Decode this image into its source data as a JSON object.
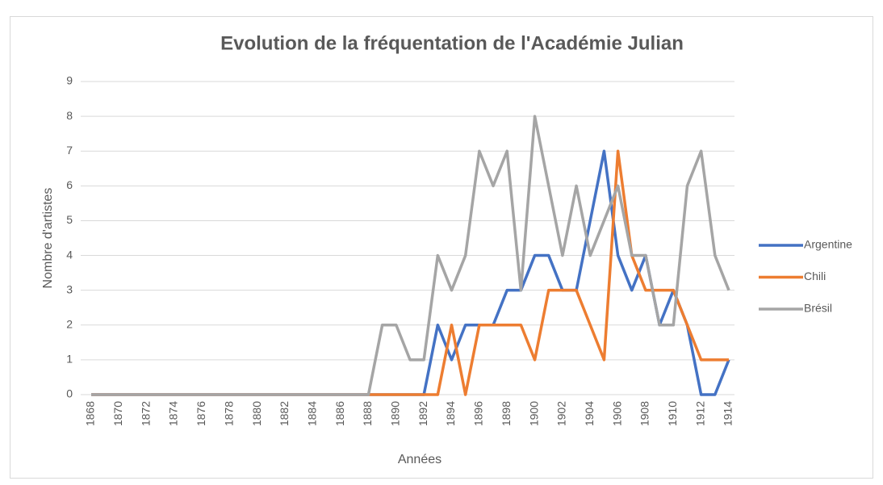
{
  "chart_data": {
    "type": "line",
    "title": "Evolution de la fréquentation de l'Académie Julian",
    "xlabel": "Années",
    "ylabel": "Nombre d'artistes",
    "categories": [
      "1868",
      null,
      "1870",
      null,
      "1872",
      null,
      "1874",
      null,
      "1876",
      null,
      "1878",
      null,
      "1880",
      null,
      "1882",
      null,
      "1884",
      null,
      "1886",
      null,
      "1888",
      null,
      "1890",
      null,
      "1892",
      null,
      "1894",
      null,
      "1896",
      null,
      "1898",
      null,
      "1900",
      null,
      "1902",
      null,
      "1904",
      null,
      "1906",
      null,
      "1908",
      null,
      "1910",
      null,
      "1912",
      null,
      "1914"
    ],
    "series": [
      {
        "name": "Argentine",
        "color": "#4472c4",
        "values": [
          0,
          0,
          0,
          0,
          0,
          0,
          0,
          0,
          0,
          0,
          0,
          0,
          0,
          0,
          0,
          0,
          0,
          0,
          0,
          0,
          0,
          0,
          0,
          0,
          0,
          2,
          1,
          2,
          2,
          2,
          3,
          3,
          4,
          4,
          3,
          3,
          5,
          7,
          4,
          3,
          4,
          2,
          3,
          2,
          0,
          0,
          1
        ]
      },
      {
        "name": "Chili",
        "color": "#ed7d31",
        "values": [
          0,
          0,
          0,
          0,
          0,
          0,
          0,
          0,
          0,
          0,
          0,
          0,
          0,
          0,
          0,
          0,
          0,
          0,
          0,
          0,
          0,
          0,
          0,
          0,
          0,
          0,
          2,
          0,
          2,
          2,
          2,
          2,
          1,
          3,
          3,
          3,
          2,
          1,
          7,
          4,
          3,
          3,
          3,
          2,
          1,
          1,
          1
        ]
      },
      {
        "name": "Brésil",
        "color": "#a5a5a5",
        "values": [
          0,
          0,
          0,
          0,
          0,
          0,
          0,
          0,
          0,
          0,
          0,
          0,
          0,
          0,
          0,
          0,
          0,
          0,
          0,
          0,
          0,
          2,
          2,
          1,
          1,
          4,
          3,
          4,
          7,
          6,
          7,
          3,
          8,
          6,
          4,
          6,
          4,
          5,
          6,
          4,
          4,
          2,
          2,
          6,
          7,
          4,
          3
        ]
      }
    ],
    "ylim": [
      0,
      9
    ],
    "yticks": [
      0,
      1,
      2,
      3,
      4,
      5,
      6,
      7,
      8,
      9
    ],
    "grid": true,
    "legend": "right"
  }
}
